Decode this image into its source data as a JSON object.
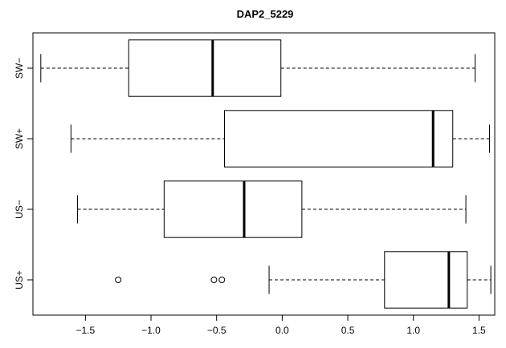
{
  "chart_data": {
    "type": "boxplot",
    "orientation": "horizontal",
    "title": "DAP2_5229",
    "xlabel": "",
    "ylabel": "",
    "xlim": [
      -1.9,
      1.62
    ],
    "x_ticks": [
      -1.5,
      -1.0,
      -0.5,
      0.0,
      0.5,
      1.0,
      1.5
    ],
    "x_tick_labels": [
      "−1.5",
      "−1.0",
      "−0.5",
      "0.0",
      "0.5",
      "1.0",
      "1.5"
    ],
    "categories": [
      "US+",
      "US−",
      "SW+",
      "SW−"
    ],
    "boxes": [
      {
        "label": "US+",
        "whisker_low": -0.1,
        "q1": 0.78,
        "median": 1.27,
        "q3": 1.41,
        "whisker_high": 1.59,
        "outliers": [
          -1.25,
          -0.52,
          -0.46
        ]
      },
      {
        "label": "US−",
        "whisker_low": -1.56,
        "q1": -0.9,
        "median": -0.29,
        "q3": 0.15,
        "whisker_high": 1.4,
        "outliers": []
      },
      {
        "label": "SW+",
        "whisker_low": -1.61,
        "q1": -0.44,
        "median": 1.15,
        "q3": 1.3,
        "whisker_high": 1.58,
        "outliers": []
      },
      {
        "label": "SW−",
        "whisker_low": -1.84,
        "q1": -1.17,
        "median": -0.53,
        "q3": -0.01,
        "whisker_high": 1.47,
        "outliers": []
      }
    ],
    "grid": false,
    "legend": "none"
  }
}
